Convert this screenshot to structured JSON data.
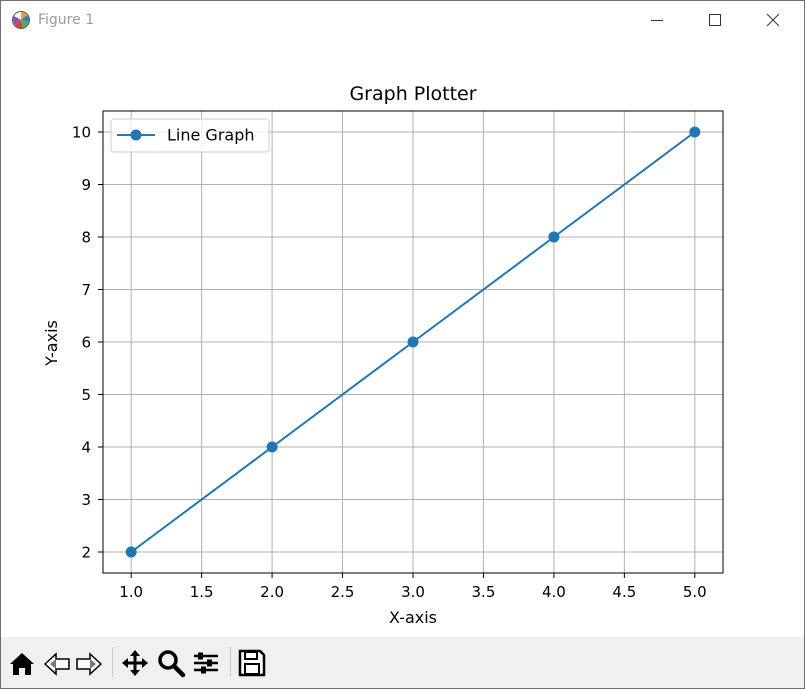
{
  "window": {
    "title": "Figure 1"
  },
  "icons": {
    "app": "matplotlib-icon",
    "minimize": "minimize-icon",
    "maximize": "maximize-icon",
    "close": "close-icon"
  },
  "toolbar": {
    "tools": [
      "home-icon",
      "back-arrow-icon",
      "forward-arrow-icon",
      "pan-icon",
      "zoom-icon",
      "configure-subplots-icon",
      "save-icon"
    ]
  },
  "colors": {
    "line": "#1f77b4",
    "grid": "#b0b0b0",
    "axes": "#000000"
  },
  "chart_data": {
    "type": "line",
    "title": "Graph Plotter",
    "xlabel": "X-axis",
    "ylabel": "Y-axis",
    "x": [
      1,
      2,
      3,
      4,
      5
    ],
    "series": [
      {
        "name": "Line Graph",
        "values": [
          2,
          4,
          6,
          8,
          10
        ],
        "marker": "circle"
      }
    ],
    "xlim": [
      0.8,
      5.2
    ],
    "ylim": [
      1.6,
      10.4
    ],
    "xticks": [
      "1.0",
      "1.5",
      "2.0",
      "2.5",
      "3.0",
      "3.5",
      "4.0",
      "4.5",
      "5.0"
    ],
    "yticks": [
      "2",
      "3",
      "4",
      "5",
      "6",
      "7",
      "8",
      "9",
      "10"
    ],
    "grid": true,
    "legend": "top-left"
  }
}
